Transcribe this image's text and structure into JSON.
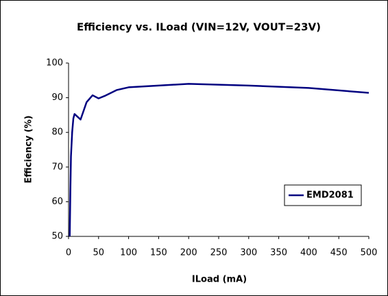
{
  "chart_data": {
    "type": "line",
    "title": "Efficiency vs. ILoad (VIN=12V, VOUT=23V)",
    "x_label": "ILoad (mA)",
    "y_label": "Efficiency (%)",
    "x": [
      2,
      3,
      4,
      6,
      8,
      10,
      15,
      20,
      30,
      40,
      50,
      60,
      80,
      100,
      200,
      300,
      400,
      500
    ],
    "series": [
      {
        "name": "EMD2081",
        "color": "#000080",
        "values": [
          50,
          63,
          73,
          80,
          84,
          85.3,
          84.5,
          83.7,
          88.7,
          90.7,
          89.8,
          90.5,
          92.2,
          93,
          94,
          93.5,
          92.8,
          91.4
        ]
      }
    ],
    "xlim": [
      0,
      500
    ],
    "xticks": [
      0,
      50,
      100,
      150,
      200,
      250,
      300,
      350,
      400,
      450,
      500
    ],
    "ylim": [
      50,
      100
    ],
    "yticks": [
      50,
      60,
      70,
      80,
      90,
      100
    ],
    "grid": false,
    "legend": "right"
  }
}
